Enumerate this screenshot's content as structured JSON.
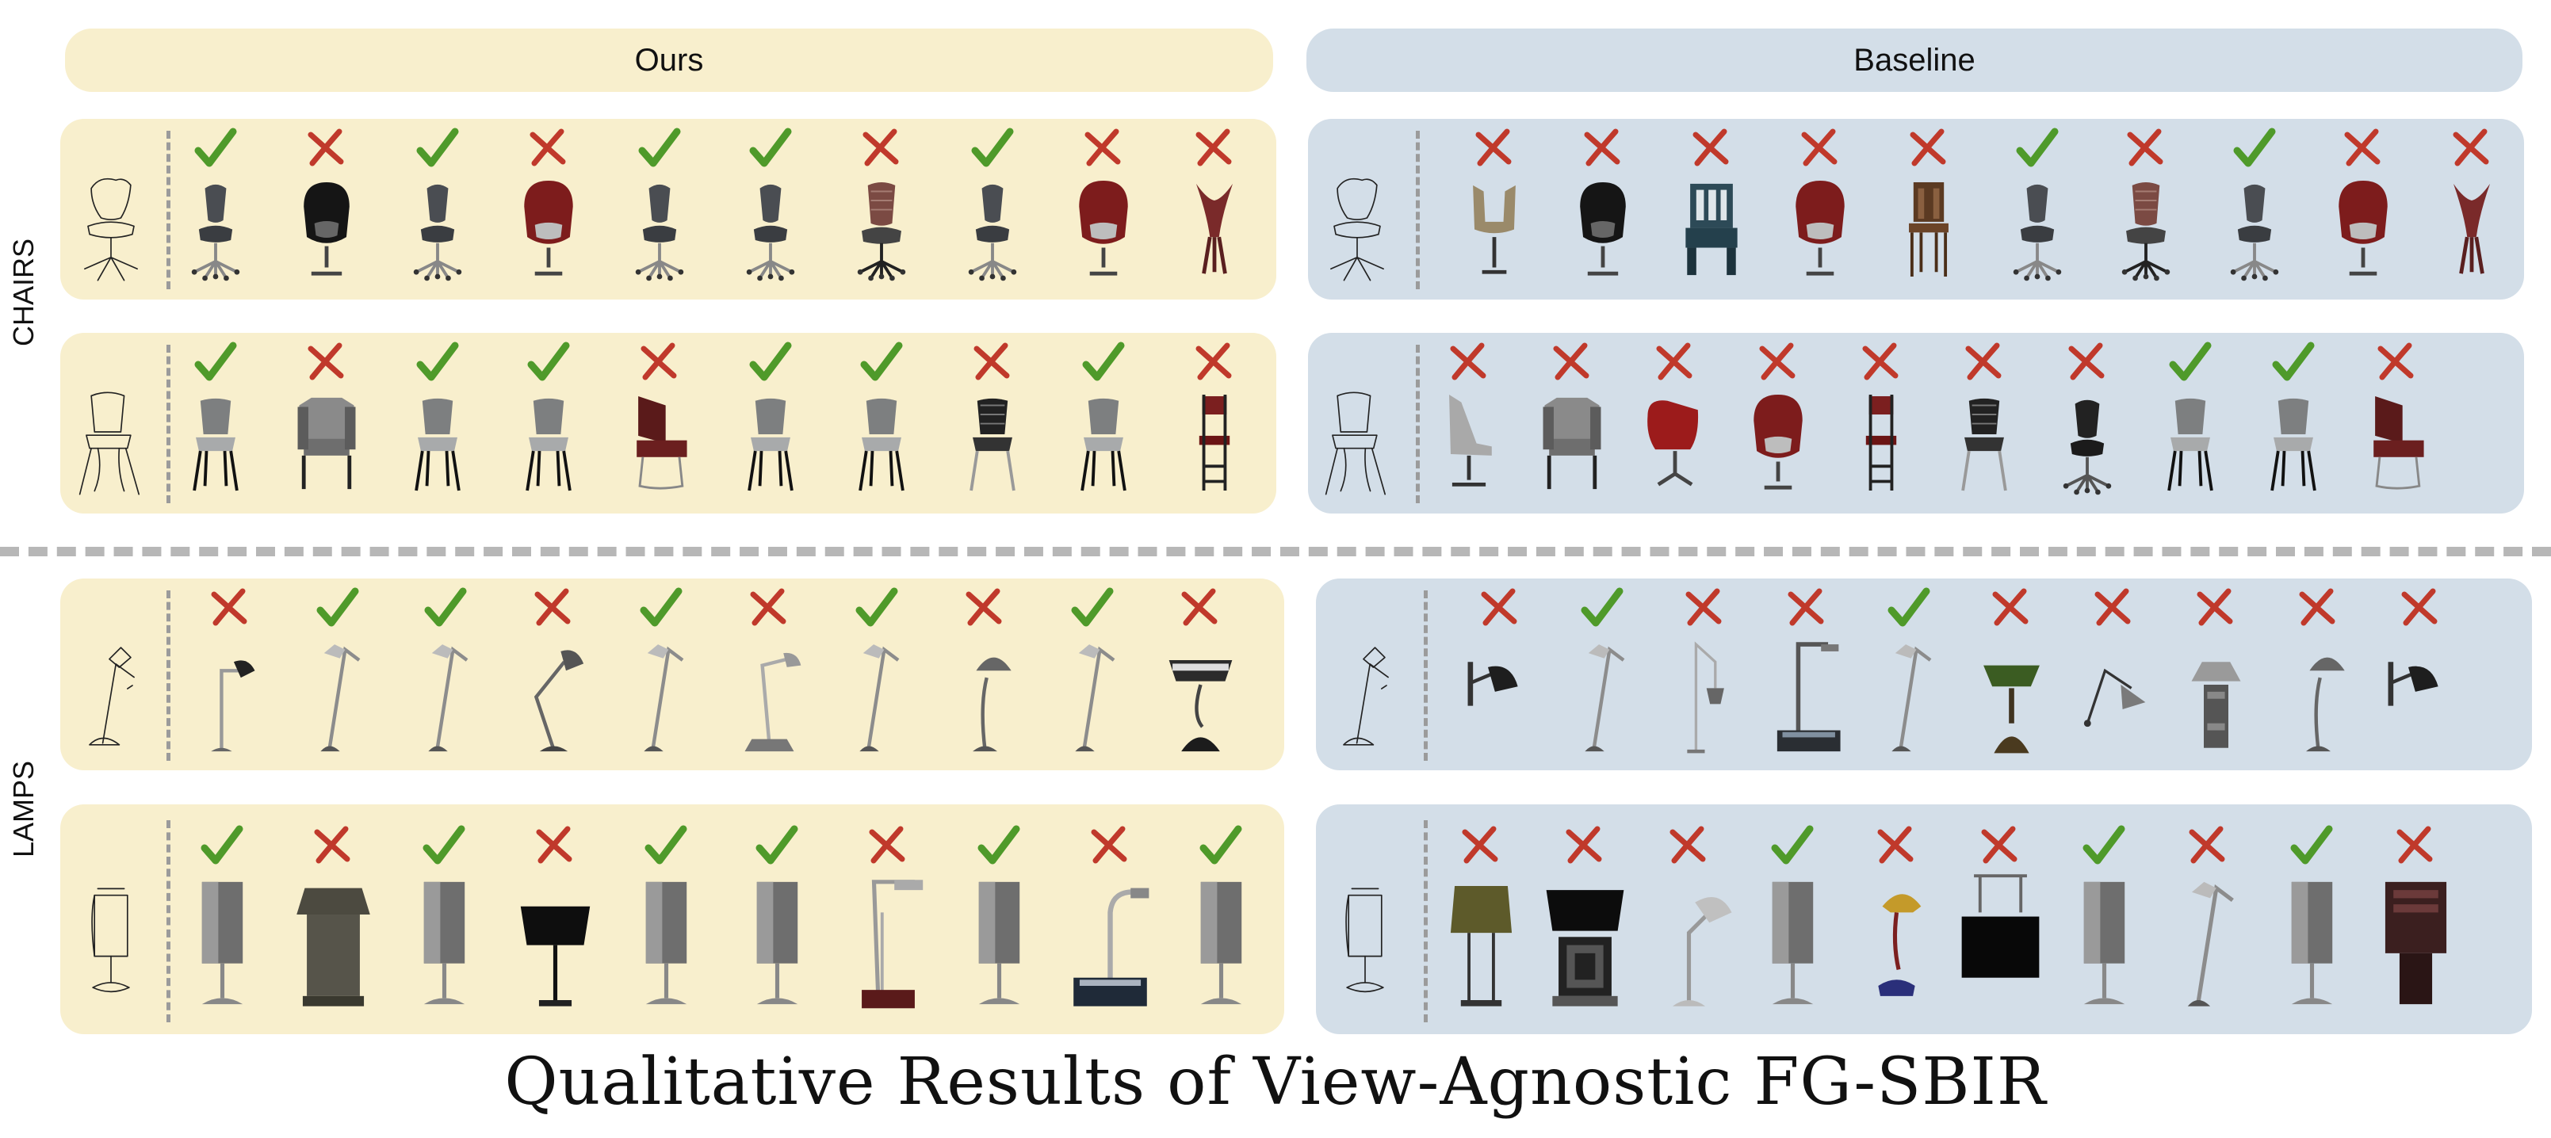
{
  "headers": {
    "ours": "Ours",
    "baseline": "Baseline"
  },
  "categories": {
    "chairs": "CHAIRS",
    "lamps": "LAMPS"
  },
  "title": "Qualitative Results of View-Agnostic FG-SBIR",
  "colors": {
    "ours_bg": "#f8efcd",
    "baseline_bg": "#d3dee8",
    "check": "#4f9a2a",
    "cross": "#c0392b",
    "divider": "#b7b7b7"
  },
  "rows": [
    {
      "category": "chairs",
      "ours": [
        {
          "item": "swivel-chair-grey",
          "correct": true
        },
        {
          "item": "egg-chair-black",
          "correct": false
        },
        {
          "item": "swivel-chair-grey",
          "correct": true
        },
        {
          "item": "egg-chair-red",
          "correct": false
        },
        {
          "item": "swivel-chair-grey",
          "correct": true
        },
        {
          "item": "swivel-chair-grey",
          "correct": true
        },
        {
          "item": "mesh-office-chair",
          "correct": false
        },
        {
          "item": "swivel-chair-grey",
          "correct": true
        },
        {
          "item": "egg-chair-red",
          "correct": false
        },
        {
          "item": "petal-chair-red",
          "correct": false
        }
      ],
      "baseline": [
        {
          "item": "lounge-chair-tan",
          "correct": false
        },
        {
          "item": "egg-chair-black",
          "correct": false
        },
        {
          "item": "block-chair-teal",
          "correct": false
        },
        {
          "item": "egg-chair-red",
          "correct": false
        },
        {
          "item": "wooden-chair",
          "correct": false
        },
        {
          "item": "swivel-chair-grey",
          "correct": true
        },
        {
          "item": "mesh-office-chair",
          "correct": false
        },
        {
          "item": "swivel-chair-grey",
          "correct": true
        },
        {
          "item": "egg-chair-red",
          "correct": false
        },
        {
          "item": "petal-chair-red",
          "correct": false
        }
      ]
    },
    {
      "category": "chairs",
      "ours": [
        {
          "item": "stack-chair-grey",
          "correct": true
        },
        {
          "item": "armchair-grey",
          "correct": false
        },
        {
          "item": "stack-chair-grey",
          "correct": true
        },
        {
          "item": "stack-chair-grey",
          "correct": true
        },
        {
          "item": "lounge-chair-maroon",
          "correct": false
        },
        {
          "item": "stack-chair-grey",
          "correct": true
        },
        {
          "item": "stack-chair-grey",
          "correct": true
        },
        {
          "item": "stack-chair-black",
          "correct": false
        },
        {
          "item": "stack-chair-grey",
          "correct": true
        },
        {
          "item": "bar-stool",
          "correct": false
        }
      ],
      "baseline": [
        {
          "item": "lounge-chair-grey",
          "correct": false
        },
        {
          "item": "armchair-grey",
          "correct": false
        },
        {
          "item": "bucket-chair-red",
          "correct": false
        },
        {
          "item": "egg-chair-red",
          "correct": false
        },
        {
          "item": "bar-stool",
          "correct": false
        },
        {
          "item": "stack-chair-black",
          "correct": false
        },
        {
          "item": "swivel-chair-black",
          "correct": false
        },
        {
          "item": "stack-chair-grey",
          "correct": true
        },
        {
          "item": "stack-chair-grey",
          "correct": true
        },
        {
          "item": "lounge-chair-maroon",
          "correct": false
        }
      ]
    },
    {
      "category": "lamps",
      "ours": [
        {
          "item": "desk-lamp-short",
          "correct": false
        },
        {
          "item": "arm-lamp",
          "correct": true
        },
        {
          "item": "arm-lamp",
          "correct": true
        },
        {
          "item": "architect-lamp",
          "correct": false
        },
        {
          "item": "arm-lamp",
          "correct": true
        },
        {
          "item": "desk-lamp-base",
          "correct": false
        },
        {
          "item": "arm-lamp",
          "correct": true
        },
        {
          "item": "dome-lamp",
          "correct": false
        },
        {
          "item": "arm-lamp",
          "correct": true
        },
        {
          "item": "bankers-lamp-black",
          "correct": false
        }
      ],
      "baseline": [
        {
          "item": "wall-spot-lamp",
          "correct": false
        },
        {
          "item": "arm-lamp",
          "correct": true
        },
        {
          "item": "floor-arc-lamp",
          "correct": false
        },
        {
          "item": "box-lamp",
          "correct": false
        },
        {
          "item": "arm-lamp",
          "correct": true
        },
        {
          "item": "bankers-lamp-green",
          "correct": false
        },
        {
          "item": "floor-cone-lamp",
          "correct": false
        },
        {
          "item": "pagoda-lamp",
          "correct": false
        },
        {
          "item": "dome-lamp",
          "correct": false
        },
        {
          "item": "wall-spot-lamp",
          "correct": false
        }
      ]
    },
    {
      "category": "lamps",
      "ours": [
        {
          "item": "cylinder-lamp",
          "correct": true
        },
        {
          "item": "table-lamp-box",
          "correct": false
        },
        {
          "item": "cylinder-lamp",
          "correct": true
        },
        {
          "item": "black-shade-lamp",
          "correct": false
        },
        {
          "item": "cylinder-lamp",
          "correct": true
        },
        {
          "item": "cylinder-lamp",
          "correct": true
        },
        {
          "item": "tall-strip-lamp",
          "correct": false
        },
        {
          "item": "cylinder-lamp",
          "correct": true
        },
        {
          "item": "gooseneck-lamp",
          "correct": false
        },
        {
          "item": "cylinder-lamp",
          "correct": true
        }
      ],
      "baseline": [
        {
          "item": "olive-shade-lamp",
          "correct": false
        },
        {
          "item": "square-table-lamp",
          "correct": false
        },
        {
          "item": "mushroom-lamp",
          "correct": false
        },
        {
          "item": "cylinder-lamp",
          "correct": true
        },
        {
          "item": "kid-lamp",
          "correct": false
        },
        {
          "item": "hanging-box-lamp",
          "correct": false
        },
        {
          "item": "cylinder-lamp",
          "correct": true
        },
        {
          "item": "arm-lamp",
          "correct": false
        },
        {
          "item": "cylinder-lamp",
          "correct": true
        },
        {
          "item": "brown-box-lamp",
          "correct": false
        }
      ]
    }
  ]
}
